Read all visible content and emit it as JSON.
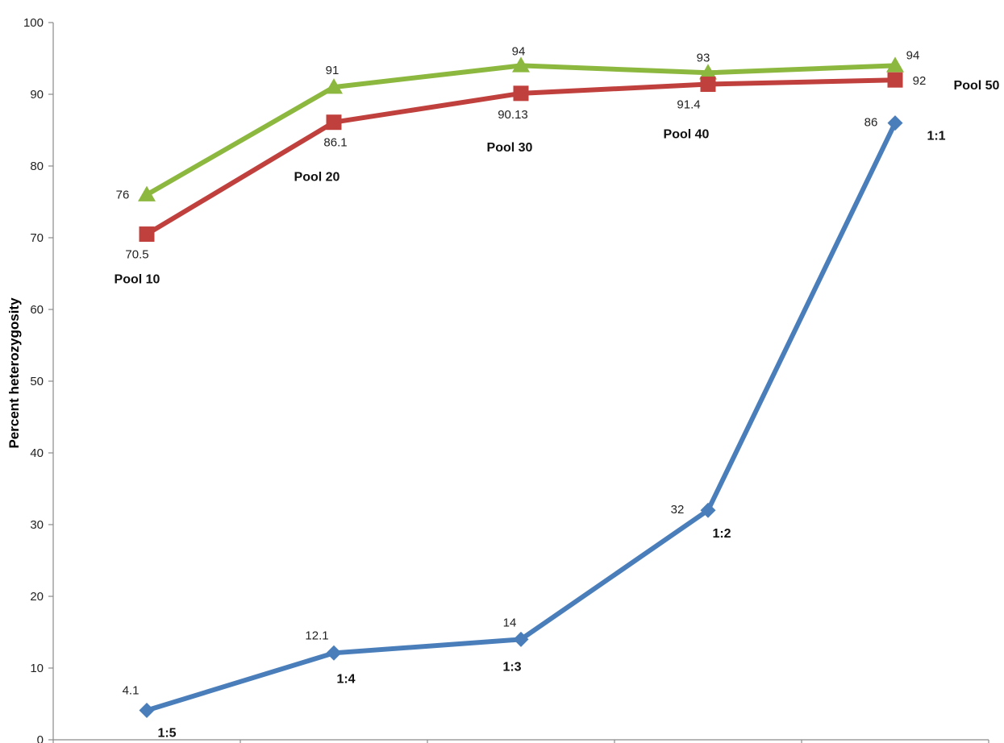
{
  "chart_data": {
    "type": "line",
    "ylabel": "Percent heterozygosity",
    "ylim": [
      0,
      100
    ],
    "yticks": [
      0,
      10,
      20,
      30,
      40,
      50,
      60,
      70,
      80,
      90,
      100
    ],
    "grid": false,
    "x": [
      1,
      2,
      3,
      4,
      5
    ],
    "series": [
      {
        "marker": "triangle",
        "color": "#8DB83F",
        "values": [
          76,
          91,
          94,
          93,
          94
        ],
        "data_labels": [
          "76",
          "91",
          "94",
          "93",
          "94"
        ]
      },
      {
        "marker": "square",
        "color": "#C0403D",
        "values": [
          70.5,
          86.1,
          90.13,
          91.4,
          92
        ],
        "data_labels": [
          "70.5",
          "86.1",
          "90.13",
          "91.4",
          "92"
        ],
        "category_labels": [
          "Pool 10",
          "Pool 20",
          "Pool 30",
          "Pool 40",
          "Pool 50"
        ]
      },
      {
        "marker": "diamond",
        "color": "#4A7EBB",
        "values": [
          4.1,
          12.1,
          14,
          32,
          86
        ],
        "data_labels": [
          "4.1",
          "12.1",
          "14",
          "32",
          "86"
        ],
        "category_labels": [
          "1:5",
          "1:4",
          "1:3",
          "1:2",
          "1:1"
        ]
      }
    ]
  }
}
